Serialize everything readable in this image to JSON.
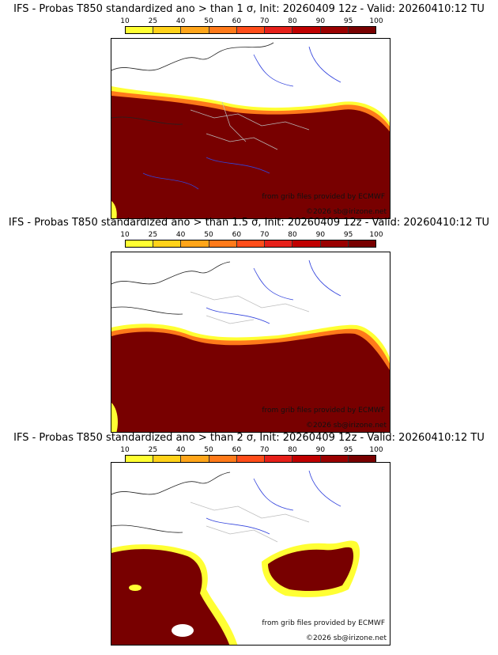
{
  "colorbar": {
    "ticks": [
      "10",
      "25",
      "40",
      "50",
      "60",
      "70",
      "80",
      "90",
      "95",
      "100"
    ],
    "colors": [
      "#ffff33",
      "#ffd21a",
      "#ffa51a",
      "#ff7a1a",
      "#ff4d1a",
      "#e6201a",
      "#c00000",
      "#9a0000",
      "#780000"
    ]
  },
  "panels": [
    {
      "title": "IFS - Probas T850  standardized ano > than 1 σ, Init: 20260409 12z - Valid: 20260410:12 TU",
      "credit_source": "from grib files provided by ECMWF",
      "credit_copyright": "©2026 sb@irizone.net"
    },
    {
      "title": "IFS - Probas T850  standardized ano > than 1.5 σ, Init: 20260409 12z - Valid: 20260410:12 TU",
      "credit_source": "from grib files provided by ECMWF",
      "credit_copyright": "©2026 sb@irizone.net"
    },
    {
      "title": "IFS - Probas T850  standardized ano > than 2 σ, Init: 20260409 12z - Valid: 20260410:12 TU",
      "credit_source": "from grib files provided by ECMWF",
      "credit_copyright": "©2026 sb@irizone.net"
    }
  ]
}
